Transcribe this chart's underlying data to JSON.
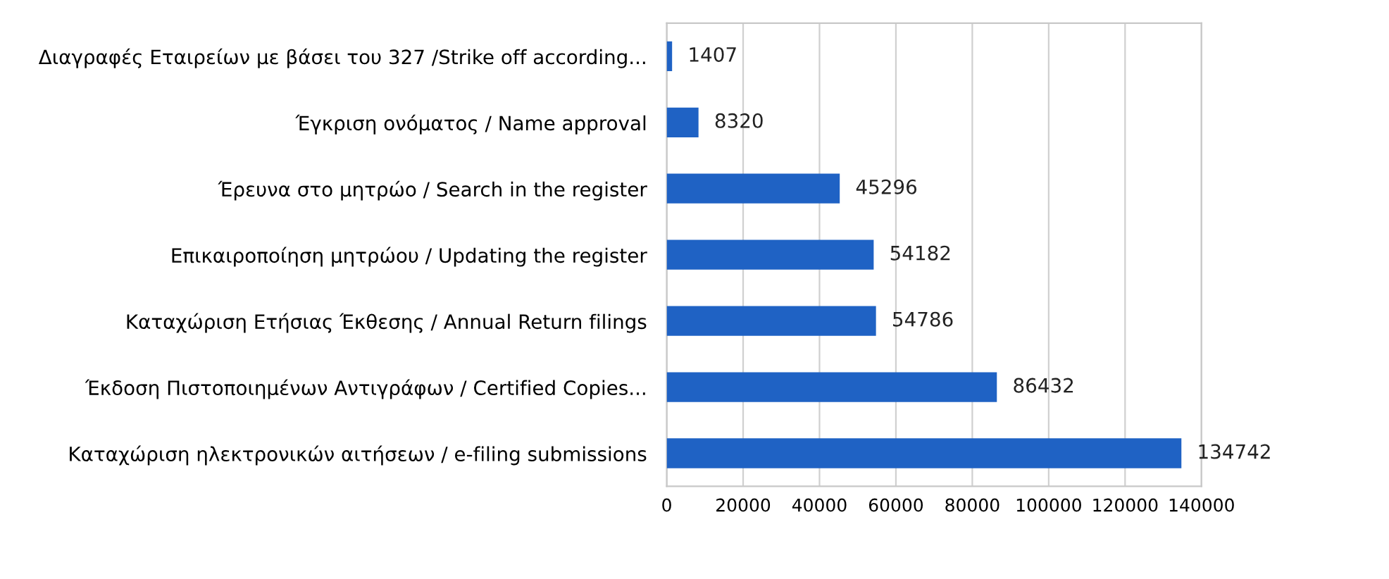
{
  "chart_data": {
    "type": "bar",
    "orientation": "horizontal",
    "categories": [
      "Διαγραφές Εταιρείων με βάσει του 327 /Strike off according...",
      "Έγκριση ονόματος / Name approval",
      "Έρευνα στο μητρώο / Search in the register",
      "Επικαιροποίηση μητρώου / Updating the register",
      "Καταχώριση Ετήσιας Έκθεσης / Annual Return filings",
      "Έκδοση Πιστοποιημένων Αντιγράφων / Certified Copies...",
      "Καταχώριση ηλεκτρονικών αιτήσεων / e-filing submissions"
    ],
    "values": [
      1407,
      8320,
      45296,
      54182,
      54786,
      86432,
      134742
    ],
    "color": "#1f62c4",
    "xlim": [
      0,
      140000
    ],
    "xticks": [
      0,
      20000,
      40000,
      60000,
      80000,
      100000,
      120000,
      140000
    ],
    "grid": "x",
    "data_labels": true,
    "legend": false
  }
}
